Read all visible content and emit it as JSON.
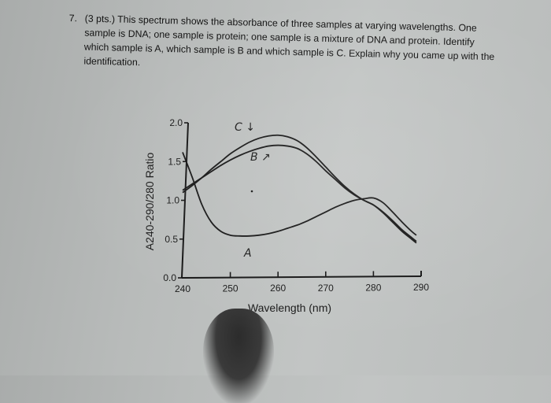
{
  "question": {
    "number": "7.",
    "text": "(3 pts.) This spectrum shows the absorbance of three samples at varying wavelengths. One sample is DNA; one sample is protein; one sample is a mixture of DNA and protein. Identify which sample is A, which sample is B and which sample is C. Explain why you came up with the identification."
  },
  "chart_data": {
    "type": "line",
    "title": "",
    "xlabel": "Wavelength (nm)",
    "ylabel": "A240-290/280 Ratio",
    "xlim": [
      240,
      290
    ],
    "ylim": [
      0,
      2.0
    ],
    "xticks": [
      240,
      250,
      260,
      270,
      280,
      290
    ],
    "xtick_labels": [
      "240",
      "250",
      "260",
      "270",
      "280",
      "290"
    ],
    "yticks": [
      0.0,
      0.5,
      1.0,
      1.5,
      2.0
    ],
    "ytick_labels": [
      "0.0",
      "0.5",
      "1.0",
      "1.5",
      "2.0"
    ],
    "grid": false,
    "legend": "none (curves labeled by hand: A, B, C)",
    "series": [
      {
        "name": "A",
        "x": [
          240,
          242,
          244,
          246,
          248,
          250,
          252,
          254,
          256,
          258,
          260,
          262,
          264,
          266,
          268,
          270,
          272,
          274,
          276,
          278,
          280,
          282,
          284,
          286,
          288,
          289
        ],
        "y": [
          1.62,
          1.3,
          0.95,
          0.72,
          0.6,
          0.55,
          0.54,
          0.54,
          0.55,
          0.57,
          0.6,
          0.64,
          0.68,
          0.73,
          0.79,
          0.85,
          0.91,
          0.96,
          1.0,
          1.02,
          1.03,
          0.97,
          0.85,
          0.72,
          0.6,
          0.55
        ]
      },
      {
        "name": "B",
        "x": [
          240,
          242,
          244,
          246,
          248,
          250,
          252,
          254,
          256,
          258,
          260,
          262,
          264,
          266,
          268,
          270,
          272,
          274,
          276,
          278,
          280,
          282,
          284,
          286,
          288,
          289
        ],
        "y": [
          1.13,
          1.21,
          1.29,
          1.37,
          1.45,
          1.52,
          1.58,
          1.63,
          1.67,
          1.7,
          1.71,
          1.7,
          1.67,
          1.6,
          1.5,
          1.38,
          1.27,
          1.16,
          1.07,
          1.0,
          0.94,
          0.85,
          0.74,
          0.62,
          0.52,
          0.47
        ]
      },
      {
        "name": "C",
        "x": [
          240,
          242,
          244,
          246,
          248,
          250,
          252,
          254,
          256,
          258,
          260,
          262,
          264,
          266,
          268,
          270,
          272,
          274,
          276,
          278,
          280,
          282,
          284,
          286,
          288,
          289
        ],
        "y": [
          1.1,
          1.19,
          1.29,
          1.4,
          1.5,
          1.6,
          1.68,
          1.75,
          1.8,
          1.83,
          1.84,
          1.82,
          1.77,
          1.68,
          1.56,
          1.43,
          1.3,
          1.18,
          1.08,
          1.0,
          0.94,
          0.84,
          0.72,
          0.6,
          0.5,
          0.45
        ]
      }
    ],
    "annotations": [
      "C ↓",
      "B ↗",
      "A"
    ]
  }
}
